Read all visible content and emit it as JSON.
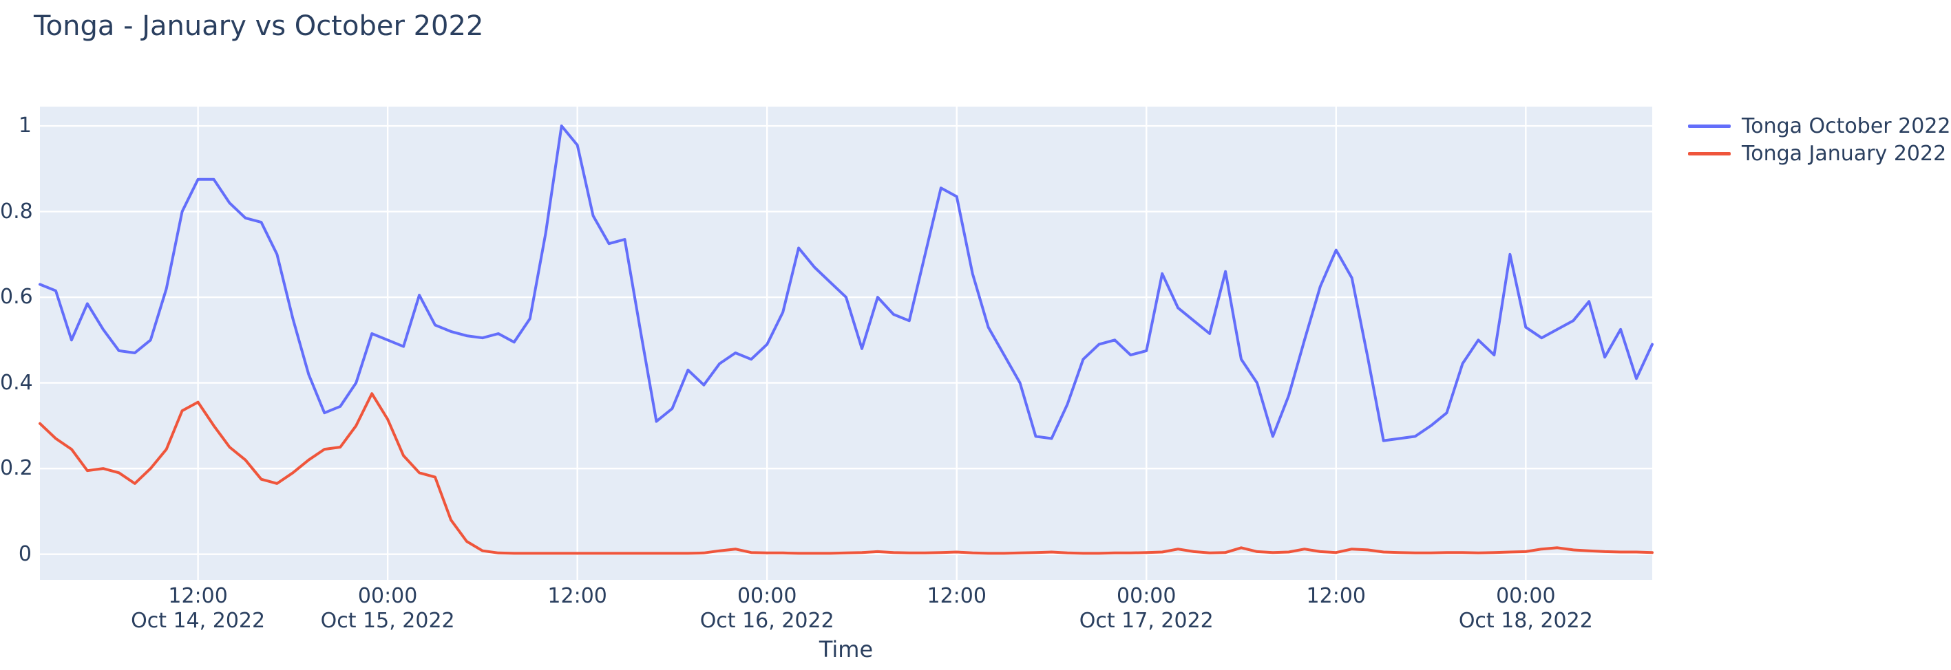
{
  "page": {
    "title": "Tonga - January vs October 2022"
  },
  "colors": {
    "paper_bg": "#ffffff",
    "plot_bg": "#e5ecf6",
    "grid": "#ffffff",
    "text": "#2a3f5f",
    "series_october": "#636efa",
    "series_january": "#ef553b"
  },
  "legend": {
    "items": [
      {
        "label": "Tonga October 2022",
        "color": "#636efa"
      },
      {
        "label": "Tonga January 2022",
        "color": "#ef553b"
      }
    ]
  },
  "axes": {
    "x_title": "Time",
    "y_ticks": [
      0,
      0.2,
      0.4,
      0.6,
      0.8,
      1
    ],
    "x_ticks": [
      {
        "t": 12,
        "time": "12:00",
        "date": "Oct 14, 2022"
      },
      {
        "t": 24,
        "time": "00:00",
        "date": "Oct 15, 2022"
      },
      {
        "t": 36,
        "time": "12:00",
        "date": ""
      },
      {
        "t": 48,
        "time": "00:00",
        "date": "Oct 16, 2022"
      },
      {
        "t": 60,
        "time": "12:00",
        "date": ""
      },
      {
        "t": 72,
        "time": "00:00",
        "date": "Oct 17, 2022"
      },
      {
        "t": 84,
        "time": "12:00",
        "date": ""
      },
      {
        "t": 96,
        "time": "00:00",
        "date": "Oct 18, 2022"
      }
    ]
  },
  "chart_data": {
    "type": "line",
    "title": "Tonga - January vs October 2022",
    "xlabel": "Time",
    "ylabel": "",
    "grid": true,
    "legend_position": "outside-top-right",
    "x_axis_note": "hours offset from 2022-10-14 00:00; data hourly from 2022-10-14 02:00 to 2022-10-18 08:00",
    "x_start_hour": 2,
    "x_step_hours": 1,
    "x_range": [
      2,
      104
    ],
    "ylim": [
      -0.06,
      1.045
    ],
    "yticks": [
      0,
      0.2,
      0.4,
      0.6,
      0.8,
      1
    ],
    "series": [
      {
        "name": "Tonga October 2022",
        "color": "#636efa",
        "values": [
          0.63,
          0.615,
          0.5,
          0.585,
          0.525,
          0.475,
          0.47,
          0.5,
          0.62,
          0.8,
          0.875,
          0.875,
          0.82,
          0.785,
          0.775,
          0.7,
          0.55,
          0.42,
          0.33,
          0.345,
          0.4,
          0.515,
          0.5,
          0.485,
          0.605,
          0.535,
          0.52,
          0.51,
          0.505,
          0.515,
          0.495,
          0.55,
          0.75,
          1.0,
          0.955,
          0.79,
          0.725,
          0.735,
          0.52,
          0.31,
          0.34,
          0.43,
          0.395,
          0.445,
          0.47,
          0.455,
          0.49,
          0.565,
          0.715,
          0.67,
          0.635,
          0.6,
          0.48,
          0.6,
          0.56,
          0.545,
          0.7,
          0.855,
          0.835,
          0.655,
          0.53,
          0.465,
          0.4,
          0.275,
          0.27,
          0.35,
          0.455,
          0.49,
          0.5,
          0.465,
          0.475,
          0.655,
          0.575,
          0.545,
          0.515,
          0.66,
          0.455,
          0.4,
          0.275,
          0.37,
          0.5,
          0.625,
          0.71,
          0.645,
          0.46,
          0.265,
          0.27,
          0.275,
          0.3,
          0.33,
          0.445,
          0.5,
          0.465,
          0.7,
          0.53,
          0.505,
          0.525,
          0.545,
          0.59,
          0.46,
          0.525,
          0.41,
          0.49
        ]
      },
      {
        "name": "Tonga January 2022",
        "color": "#ef553b",
        "values": [
          0.305,
          0.27,
          0.245,
          0.195,
          0.2,
          0.19,
          0.165,
          0.2,
          0.245,
          0.335,
          0.355,
          0.3,
          0.25,
          0.22,
          0.175,
          0.165,
          0.19,
          0.22,
          0.245,
          0.25,
          0.3,
          0.375,
          0.315,
          0.23,
          0.19,
          0.18,
          0.08,
          0.03,
          0.008,
          0.003,
          0.002,
          0.002,
          0.002,
          0.002,
          0.002,
          0.002,
          0.002,
          0.002,
          0.002,
          0.002,
          0.002,
          0.002,
          0.003,
          0.008,
          0.012,
          0.004,
          0.003,
          0.003,
          0.002,
          0.002,
          0.002,
          0.003,
          0.004,
          0.006,
          0.004,
          0.003,
          0.003,
          0.004,
          0.005,
          0.003,
          0.002,
          0.002,
          0.003,
          0.004,
          0.005,
          0.003,
          0.002,
          0.002,
          0.003,
          0.003,
          0.004,
          0.005,
          0.012,
          0.006,
          0.003,
          0.004,
          0.015,
          0.006,
          0.004,
          0.005,
          0.012,
          0.006,
          0.004,
          0.012,
          0.01,
          0.005,
          0.004,
          0.003,
          0.003,
          0.004,
          0.004,
          0.003,
          0.004,
          0.005,
          0.006,
          0.012,
          0.015,
          0.01,
          0.008,
          0.006,
          0.005,
          0.005,
          0.004
        ]
      }
    ]
  }
}
